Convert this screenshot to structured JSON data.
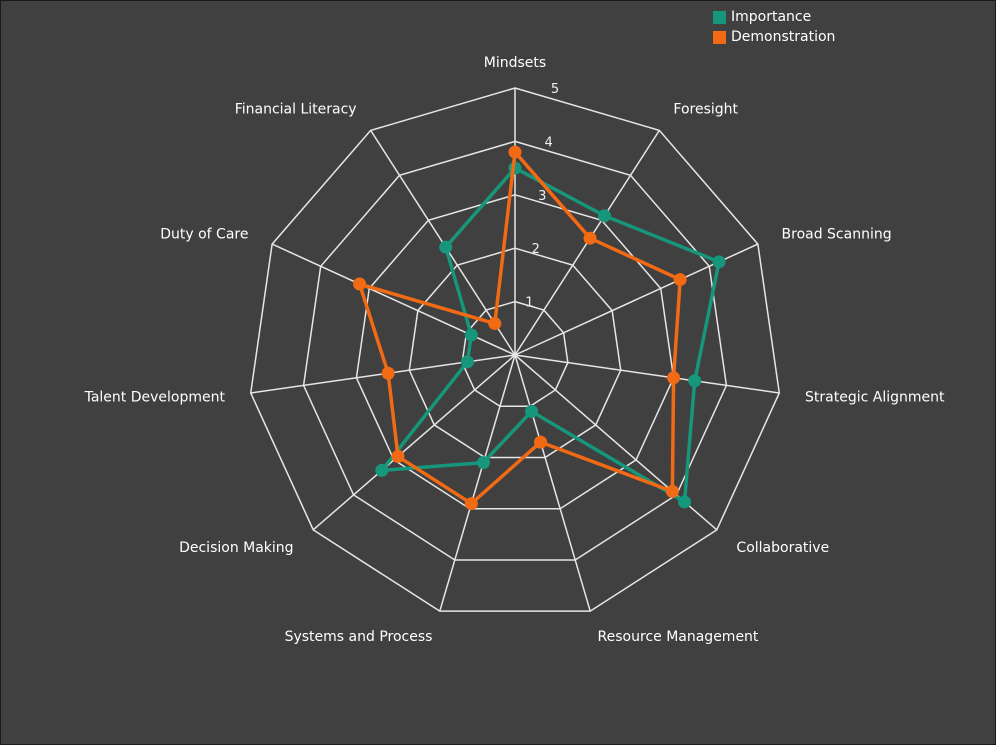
{
  "chart_data": {
    "type": "radar",
    "categories": [
      "Mindsets",
      "Foresight",
      "Broad Scanning",
      "Strategic Alignment",
      "Collaborative",
      "Resource Management",
      "Systems and Process",
      "Decision Making",
      "Talent Development",
      "Duty of Care",
      "Financial Literacy"
    ],
    "rticks": [
      1,
      2,
      3,
      4,
      5
    ],
    "rlim": [
      0,
      5
    ],
    "grid": true,
    "legend_position": "top-right",
    "series": [
      {
        "name": "Importance",
        "color": "#16967a",
        "values": [
          3.5,
          3.1,
          4.2,
          3.4,
          4.2,
          1.1,
          2.1,
          3.3,
          0.9,
          0.9,
          2.4
        ]
      },
      {
        "name": "Demonstration",
        "color": "#f26a13",
        "values": [
          3.8,
          2.6,
          3.4,
          3.0,
          3.9,
          1.7,
          2.9,
          2.9,
          2.4,
          3.2,
          0.7
        ]
      }
    ]
  }
}
